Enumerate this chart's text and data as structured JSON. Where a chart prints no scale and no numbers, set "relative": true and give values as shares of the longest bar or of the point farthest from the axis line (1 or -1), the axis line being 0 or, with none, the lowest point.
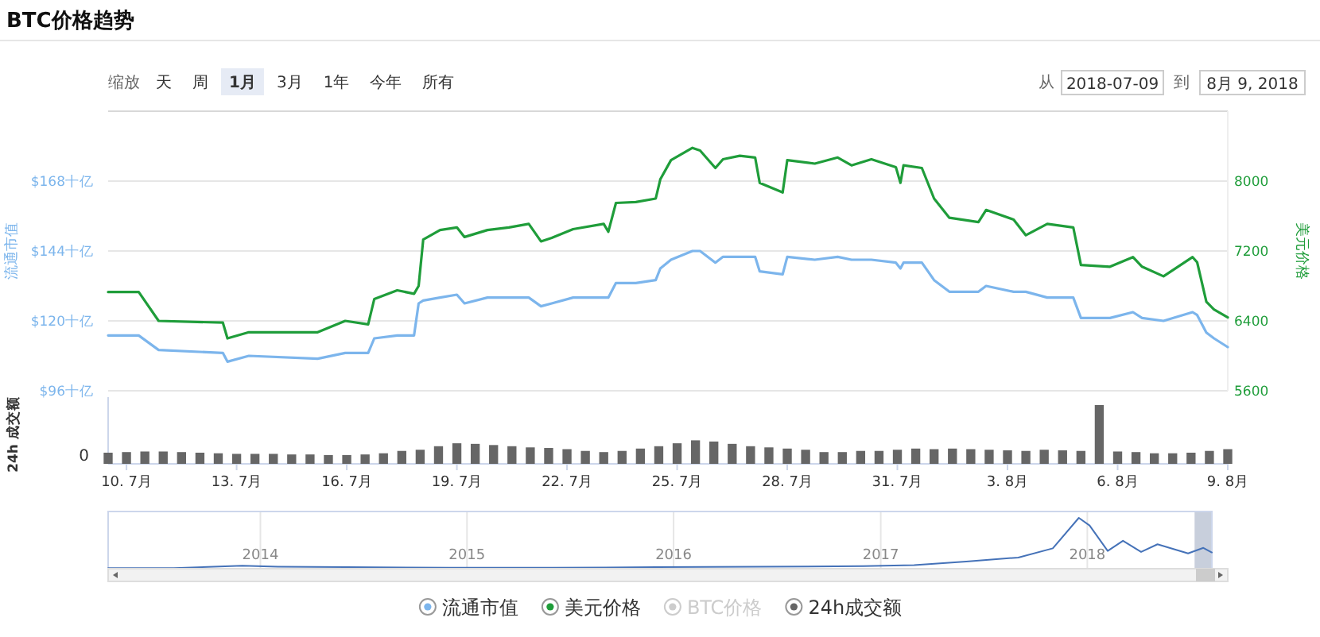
{
  "chart_data": [
    {
      "type": "line",
      "title": "BTC价格趋势",
      "ylabel": "流通市值",
      "y2label": "美元价格",
      "xlim": [
        "2018-07-09T12:00",
        "2018-08-09T00:00"
      ],
      "ylim": [
        96,
        192
      ],
      "yticks": [
        {
          "value": 96,
          "label": "$96十亿"
        },
        {
          "value": 120,
          "label": "$120十亿"
        },
        {
          "value": 144,
          "label": "$144十亿"
        },
        {
          "value": 168,
          "label": "$168十亿"
        }
      ],
      "y2lim": [
        5600,
        8800
      ],
      "y2ticks": [
        5600,
        6400,
        7200,
        8000
      ],
      "tick_labels": "y",
      "grid": "y",
      "legend": "bottom",
      "annotations": [
        "缩放",
        "天",
        "周",
        "1月",
        "3月",
        "1年",
        "今年",
        "所有",
        "从",
        "2018-07-09",
        "到",
        "8月 9, 2018",
        "BTC价格"
      ],
      "x": [
        "2018-07-09T12:00",
        "2018-07-10T08:00",
        "2018-07-10T21:00",
        "2018-07-12T15:00",
        "2018-07-12T18:00",
        "2018-07-13T08:00",
        "2018-07-15T05:00",
        "2018-07-15T23:00",
        "2018-07-16T14:00",
        "2018-07-16T18:00",
        "2018-07-17T09:00",
        "2018-07-17T20:00",
        "2018-07-17T23:00",
        "2018-07-18T02:00",
        "2018-07-18T13:00",
        "2018-07-19T00:00",
        "2018-07-19T05:00",
        "2018-07-19T20:00",
        "2018-07-20T10:00",
        "2018-07-20T23:00",
        "2018-07-21T07:00",
        "2018-07-21T14:00",
        "2018-07-22T04:00",
        "2018-07-23T00:00",
        "2018-07-23T03:00",
        "2018-07-23T08:00",
        "2018-07-23T21:00",
        "2018-07-24T10:00",
        "2018-07-24T13:00",
        "2018-07-24T20:00",
        "2018-07-25T10:00",
        "2018-07-25T15:00",
        "2018-07-26T01:00",
        "2018-07-26T06:00",
        "2018-07-26T17:00",
        "2018-07-27T03:00",
        "2018-07-27T06:00",
        "2018-07-27T21:00",
        "2018-07-28T00:00",
        "2018-07-28T18:00",
        "2018-07-29T09:00",
        "2018-07-29T18:00",
        "2018-07-30T07:00",
        "2018-07-30T23:00",
        "2018-07-31T02:00",
        "2018-07-31T04:00",
        "2018-07-31T16:00",
        "2018-08-01T00:00",
        "2018-08-01T10:00",
        "2018-08-02T05:00",
        "2018-08-02T10:00",
        "2018-08-03T04:00",
        "2018-08-03T12:00",
        "2018-08-04T02:00",
        "2018-08-04T19:00",
        "2018-08-05T00:00",
        "2018-08-05T19:00",
        "2018-08-06T10:00",
        "2018-08-06T16:00",
        "2018-08-07T06:00",
        "2018-08-08T01:00",
        "2018-08-08T04:00",
        "2018-08-08T10:00",
        "2018-08-08T15:00",
        "2018-08-09T00:00"
      ],
      "series": [
        {
          "name": "流通市值",
          "color": "#7cb5ec",
          "values": [
            115,
            115,
            110,
            109,
            106,
            108,
            107,
            109,
            109,
            114,
            115,
            115,
            126,
            127,
            128,
            129,
            126,
            128,
            128,
            128,
            125,
            126,
            128,
            128,
            128,
            133,
            133,
            134,
            138,
            141,
            144,
            144,
            140,
            142,
            142,
            142,
            137,
            136,
            142,
            141,
            142,
            141,
            141,
            140,
            138,
            140,
            140,
            134,
            130,
            130,
            132,
            130,
            130,
            128,
            128,
            121,
            121,
            123,
            121,
            120,
            123,
            122,
            116,
            114,
            111
          ]
        },
        {
          "name": "美元价格",
          "color": "#1f9d3a",
          "axis": "y2",
          "values": [
            6730,
            6730,
            6400,
            6380,
            6200,
            6270,
            6270,
            6400,
            6360,
            6650,
            6750,
            6710,
            6800,
            7330,
            7440,
            7470,
            7360,
            7440,
            7470,
            7510,
            7310,
            7350,
            7450,
            7510,
            7420,
            7750,
            7760,
            7800,
            8020,
            8240,
            8380,
            8350,
            8150,
            8250,
            8290,
            8270,
            7980,
            7870,
            8240,
            8200,
            8270,
            8180,
            8250,
            8160,
            7980,
            8180,
            8150,
            7800,
            7580,
            7530,
            7670,
            7560,
            7380,
            7510,
            7470,
            7040,
            7020,
            7130,
            7020,
            6910,
            7130,
            7070,
            6620,
            6530,
            6440
          ]
        }
      ]
    },
    {
      "type": "bar",
      "relative": true,
      "ylabel": "24h 成交额",
      "annotations": [
        "0"
      ],
      "legend": "bottom",
      "xlim": [
        "2018-07-09T12:00",
        "2018-08-09T00:00"
      ],
      "xticks": [
        {
          "value": "2018-07-10",
          "label": "10. 7月"
        },
        {
          "value": "2018-07-13",
          "label": "13. 7月"
        },
        {
          "value": "2018-07-16",
          "label": "16. 7月"
        },
        {
          "value": "2018-07-19",
          "label": "19. 7月"
        },
        {
          "value": "2018-07-22",
          "label": "22. 7月"
        },
        {
          "value": "2018-07-25",
          "label": "25. 7月"
        },
        {
          "value": "2018-07-28",
          "label": "28. 7月"
        },
        {
          "value": "2018-07-31",
          "label": "31. 7月"
        },
        {
          "value": "2018-08-03",
          "label": "3. 8月"
        },
        {
          "value": "2018-08-06",
          "label": "6. 8月"
        },
        {
          "value": "2018-08-09",
          "label": "9. 8月"
        }
      ],
      "tick_labels": "x",
      "x": [
        "2018-07-09T12:00",
        "2018-07-10T00:00",
        "2018-07-10T12:00",
        "2018-07-11T00:00",
        "2018-07-11T12:00",
        "2018-07-12T00:00",
        "2018-07-12T12:00",
        "2018-07-13T00:00",
        "2018-07-13T12:00",
        "2018-07-14T00:00",
        "2018-07-14T12:00",
        "2018-07-15T00:00",
        "2018-07-15T12:00",
        "2018-07-16T00:00",
        "2018-07-16T12:00",
        "2018-07-17T00:00",
        "2018-07-17T12:00",
        "2018-07-18T00:00",
        "2018-07-18T12:00",
        "2018-07-19T00:00",
        "2018-07-19T12:00",
        "2018-07-20T00:00",
        "2018-07-20T12:00",
        "2018-07-21T00:00",
        "2018-07-21T12:00",
        "2018-07-22T00:00",
        "2018-07-22T12:00",
        "2018-07-23T00:00",
        "2018-07-23T12:00",
        "2018-07-24T00:00",
        "2018-07-24T12:00",
        "2018-07-25T00:00",
        "2018-07-25T12:00",
        "2018-07-26T00:00",
        "2018-07-26T12:00",
        "2018-07-27T00:00",
        "2018-07-27T12:00",
        "2018-07-28T00:00",
        "2018-07-28T12:00",
        "2018-07-29T00:00",
        "2018-07-29T12:00",
        "2018-07-30T00:00",
        "2018-07-30T12:00",
        "2018-07-31T00:00",
        "2018-07-31T12:00",
        "2018-08-01T00:00",
        "2018-08-01T12:00",
        "2018-08-02T00:00",
        "2018-08-02T12:00",
        "2018-08-03T00:00",
        "2018-08-03T12:00",
        "2018-08-04T00:00",
        "2018-08-04T12:00",
        "2018-08-05T00:00",
        "2018-08-05T12:00",
        "2018-08-06T00:00",
        "2018-08-06T12:00",
        "2018-08-07T00:00",
        "2018-08-07T12:00",
        "2018-08-08T00:00",
        "2018-08-08T12:00",
        "2018-08-09T00:00"
      ],
      "series": [
        {
          "name": "24h成交额",
          "color": "#666666",
          "values": [
            0.19,
            0.2,
            0.21,
            0.21,
            0.2,
            0.19,
            0.18,
            0.17,
            0.17,
            0.17,
            0.16,
            0.16,
            0.15,
            0.15,
            0.16,
            0.18,
            0.22,
            0.24,
            0.3,
            0.35,
            0.34,
            0.32,
            0.3,
            0.28,
            0.27,
            0.25,
            0.22,
            0.2,
            0.22,
            0.26,
            0.3,
            0.35,
            0.4,
            0.38,
            0.34,
            0.3,
            0.28,
            0.26,
            0.24,
            0.2,
            0.2,
            0.22,
            0.22,
            0.24,
            0.26,
            0.25,
            0.26,
            0.25,
            0.24,
            0.23,
            0.22,
            0.24,
            0.23,
            0.22,
            1.0,
            0.21,
            0.2,
            0.18,
            0.18,
            0.19,
            0.22,
            0.25
          ]
        }
      ]
    },
    {
      "type": "line",
      "relative": true,
      "grid": "x",
      "tick_labels": "x",
      "xlim": [
        "2013-04-07",
        "2018-08-09"
      ],
      "xticks": [
        {
          "value": "2014-01-01",
          "label": "2014"
        },
        {
          "value": "2015-01-01",
          "label": "2015"
        },
        {
          "value": "2016-01-01",
          "label": "2016"
        },
        {
          "value": "2017-01-01",
          "label": "2017"
        },
        {
          "value": "2018-01-01",
          "label": "2018"
        }
      ],
      "bands": [
        {
          "axis": "x",
          "from": "2018-07-09T12:00",
          "to": "2018-08-09T00:00",
          "color": "#c8cfdc"
        }
      ],
      "x": [
        "2013-04-07",
        "2013-08-01",
        "2013-11-30",
        "2014-02-01",
        "2014-06-01",
        "2014-12-01",
        "2015-06-01",
        "2015-12-01",
        "2016-06-01",
        "2016-12-01",
        "2017-03-01",
        "2017-06-01",
        "2017-09-01",
        "2017-11-01",
        "2017-12-17",
        "2018-01-05",
        "2018-02-06",
        "2018-03-05",
        "2018-04-06",
        "2018-05-05",
        "2018-06-28",
        "2018-07-25",
        "2018-08-09"
      ],
      "series": [
        {
          "color": "#4572b8",
          "values": [
            0.01,
            0.01,
            0.06,
            0.04,
            0.03,
            0.02,
            0.02,
            0.03,
            0.04,
            0.05,
            0.07,
            0.14,
            0.22,
            0.4,
            1.0,
            0.85,
            0.35,
            0.55,
            0.33,
            0.48,
            0.3,
            0.41,
            0.32
          ]
        }
      ]
    }
  ]
}
